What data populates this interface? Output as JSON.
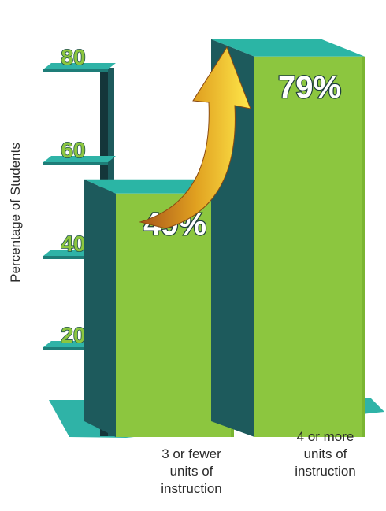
{
  "chart_data": {
    "type": "bar",
    "title": "",
    "ylabel": "Percentage of Students",
    "xlabel": "",
    "ylim": [
      0,
      85
    ],
    "yticks": [
      "20",
      "40",
      "60",
      "80"
    ],
    "categories": [
      "3 or fewer\nunits of\ninstruction",
      "4 or more\nunits of\ninstruction"
    ],
    "values": [
      49,
      79
    ],
    "data_labels": [
      "49%",
      "79%"
    ],
    "annotation": "upward arrow from first bar to second bar",
    "colors": {
      "bar_face": "#8cc63f",
      "bar_side": "#1d5a5c",
      "bar_top": "#2bb5a5",
      "platform": "#2fb3a7",
      "arrow_light": "#ffe033",
      "arrow_dark": "#b8641a",
      "tick_text": "#8cc63f",
      "tick_outline": "#1f4f4c"
    }
  }
}
